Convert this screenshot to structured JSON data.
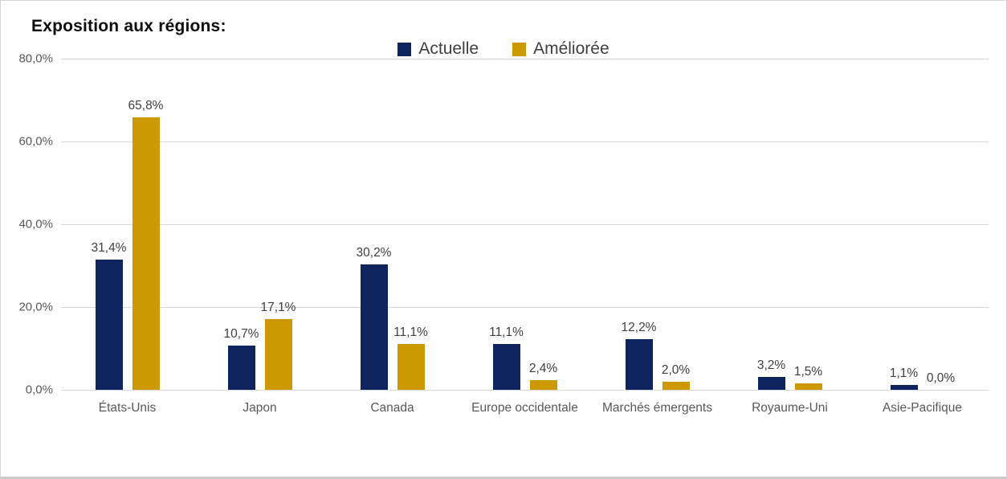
{
  "chart_data": {
    "type": "bar",
    "title": "Exposition aux régions:",
    "categories": [
      "États-Unis",
      "Japon",
      "Canada",
      "Europe occidentale",
      "Marchés émergents",
      "Royaume-Uni",
      "Asie-Pacifique"
    ],
    "series": [
      {
        "name": "Actuelle",
        "color": "#0d245f",
        "values": [
          31.4,
          10.7,
          30.2,
          11.1,
          12.2,
          3.2,
          1.1
        ],
        "labels": [
          "31,4%",
          "10,7%",
          "30,2%",
          "11,1%",
          "12,2%",
          "3,2%",
          "1,1%"
        ]
      },
      {
        "name": "Améliorée",
        "color": "#cc9902",
        "values": [
          65.8,
          17.1,
          11.1,
          2.4,
          2.0,
          1.5,
          0.0
        ],
        "labels": [
          "65,8%",
          "17,1%",
          "11,1%",
          "2,4%",
          "2,0%",
          "1,5%",
          "0,0%"
        ]
      }
    ],
    "ylim": [
      0,
      80
    ],
    "yticks": [
      {
        "value": 0,
        "label": "0,0%"
      },
      {
        "value": 20,
        "label": "20,0%"
      },
      {
        "value": 40,
        "label": "40,0%"
      },
      {
        "value": 60,
        "label": "60,0%"
      },
      {
        "value": 80,
        "label": "80,0%"
      }
    ],
    "grid": true,
    "legend_position": "top-center"
  },
  "colors": {
    "grid": "#d9d9d9",
    "axis_text": "#595959",
    "value_text": "#404040",
    "title_text": "#0d0d0d",
    "background": "#ffffff",
    "border": "#d6d6d6"
  }
}
